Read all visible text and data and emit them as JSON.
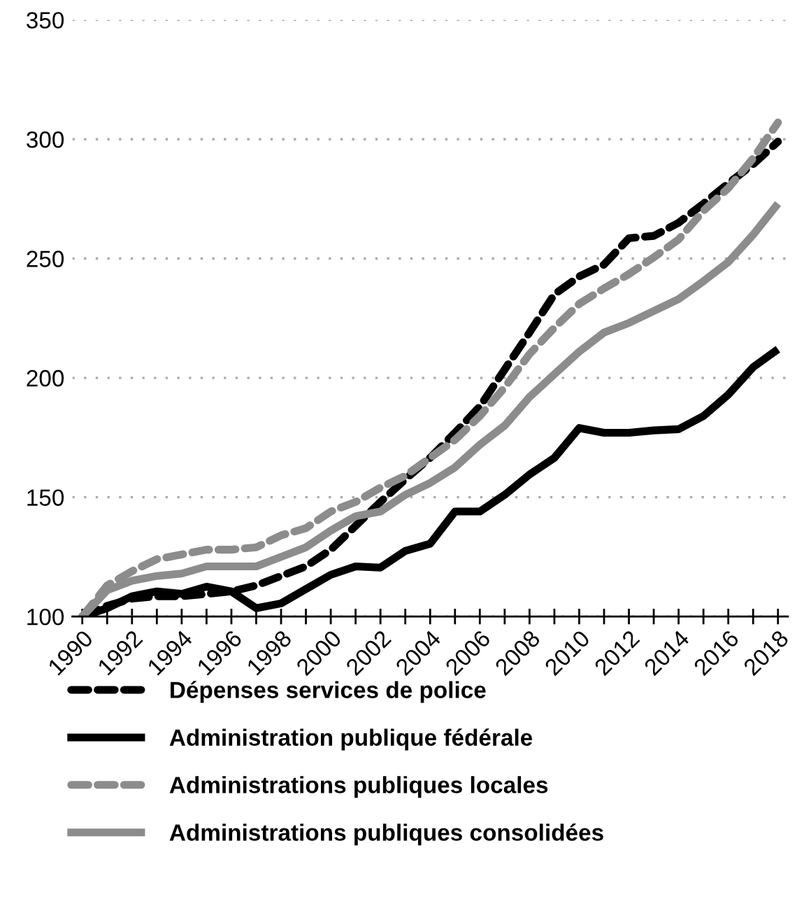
{
  "chart_data": {
    "type": "line",
    "x": [
      1990,
      1991,
      1992,
      1993,
      1994,
      1995,
      1996,
      1997,
      1998,
      1999,
      2000,
      2001,
      2002,
      2003,
      2004,
      2005,
      2006,
      2007,
      2008,
      2009,
      2010,
      2011,
      2012,
      2013,
      2014,
      2015,
      2016,
      2017,
      2018
    ],
    "series": [
      {
        "name": "Dépenses services de police",
        "color": "#000000",
        "line_style": "dashed",
        "values": [
          100,
          104.5,
          107.5,
          108.5,
          108.5,
          109.5,
          110.5,
          113,
          117,
          121,
          128,
          138,
          148,
          157.5,
          166.5,
          177,
          188,
          203.5,
          219,
          235,
          242.5,
          247.5,
          258.5,
          259.5,
          265,
          273,
          281.5,
          289.5,
          299
        ]
      },
      {
        "name": "Administration publique fédérale",
        "color": "#000000",
        "line_style": "solid",
        "values": [
          100,
          103.5,
          108.5,
          110.5,
          109.5,
          112.5,
          110.5,
          103.5,
          105.5,
          111.5,
          117.5,
          121,
          120.5,
          127.5,
          130.5,
          144,
          144,
          151,
          159.5,
          166.5,
          179,
          177,
          177,
          178,
          178.5,
          184,
          193,
          204.5,
          212
        ]
      },
      {
        "name": "Administrations publiques locales",
        "color": "#8c8c8c",
        "line_style": "dashed",
        "values": [
          100,
          113,
          119,
          124,
          126,
          128,
          128,
          129,
          134,
          137,
          144,
          148,
          154,
          159,
          166.5,
          174,
          184,
          196,
          210,
          221,
          231,
          237.5,
          243.5,
          250.5,
          258,
          270,
          279.5,
          292,
          307
        ]
      },
      {
        "name": "Administrations publiques consolidées",
        "color": "#8c8c8c",
        "line_style": "solid",
        "values": [
          100,
          111,
          115,
          117,
          118,
          121,
          121,
          121,
          125,
          129,
          136,
          142,
          144,
          151,
          156,
          162.5,
          172,
          180,
          192,
          201.5,
          211,
          219,
          223,
          228,
          233,
          240.5,
          248.5,
          260,
          273
        ]
      }
    ],
    "xlim": [
      1989.6,
      2018.4
    ],
    "xticks": [
      1990,
      {
        "value": 1991,
        "label": null
      },
      1992,
      {
        "value": 1993,
        "label": null
      },
      1994,
      {
        "value": 1995,
        "label": null
      },
      1996,
      {
        "value": 1997,
        "label": null
      },
      1998,
      {
        "value": 1999,
        "label": null
      },
      2000,
      {
        "value": 2001,
        "label": null
      },
      2002,
      {
        "value": 2003,
        "label": null
      },
      2004,
      {
        "value": 2005,
        "label": null
      },
      2006,
      {
        "value": 2007,
        "label": null
      },
      2008,
      {
        "value": 2009,
        "label": null
      },
      2010,
      {
        "value": 2011,
        "label": null
      },
      2012,
      {
        "value": 2013,
        "label": null
      },
      2014,
      {
        "value": 2015,
        "label": null
      },
      2016,
      {
        "value": 2017,
        "label": null
      },
      2018
    ],
    "ylim": [
      100,
      350
    ],
    "yticks": [
      100,
      150,
      200,
      250,
      300,
      350
    ],
    "grid": "y",
    "legend": "bottom",
    "marker": "none"
  }
}
